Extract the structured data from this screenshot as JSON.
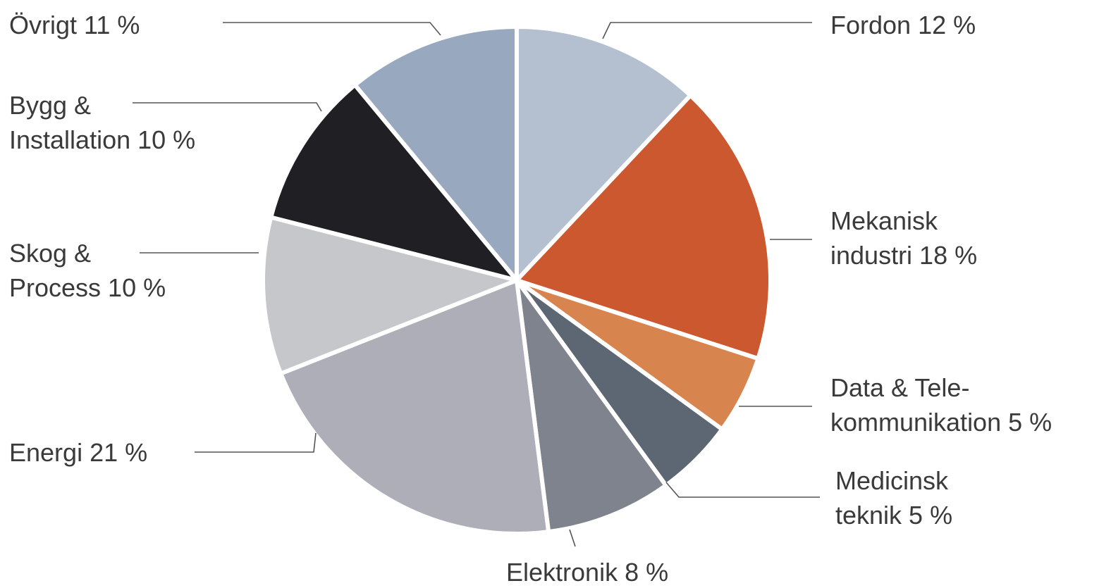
{
  "chart_data": {
    "type": "pie",
    "title": "",
    "slices": [
      {
        "label": "Fordon 12 %",
        "name": "Fordon",
        "value": 12,
        "color": "#b4c0d0"
      },
      {
        "label": "Mekanisk industri 18 %",
        "name": "Mekanisk industri",
        "value": 18,
        "color": "#cb582f"
      },
      {
        "label": "Data & Telekommunikation 5 %",
        "name": "Data & Telekommunikation",
        "value": 5,
        "color": "#d8844e"
      },
      {
        "label": "Medicinsk teknik 5 %",
        "name": "Medicinsk teknik",
        "value": 5,
        "color": "#5d6774"
      },
      {
        "label": "Elektronik 8 %",
        "name": "Elektronik",
        "value": 8,
        "color": "#7f838e"
      },
      {
        "label": "Energi 21 %",
        "name": "Energi",
        "value": 21,
        "color": "#aeaeb8"
      },
      {
        "label": "Skog & Process 10 %",
        "name": "Skog & Process",
        "value": 10,
        "color": "#c6c7cb"
      },
      {
        "label": "Bygg & Installation 10 %",
        "name": "Bygg & Installation",
        "value": 10,
        "color": "#201f23"
      },
      {
        "label": "Övrigt 11 %",
        "name": "Övrigt",
        "value": 11,
        "color": "#98a8be"
      }
    ],
    "label_lines": [
      [
        "Fordon 12 %"
      ],
      [
        "Mekanisk",
        "industri 18 %"
      ],
      [
        "Data & Tele-",
        "kommunikation 5 %"
      ],
      [
        "Medicinsk",
        "teknik 5 %"
      ],
      [
        "Elektronik 8 %"
      ],
      [
        "Energi 21 %"
      ],
      [
        "Skog &",
        "Process 10 %"
      ],
      [
        "Bygg &",
        "Installation 10 %"
      ],
      [
        "Övrigt 11 %"
      ]
    ],
    "start_angle": "12 o'clock",
    "direction": "clockwise",
    "legend": "none"
  }
}
